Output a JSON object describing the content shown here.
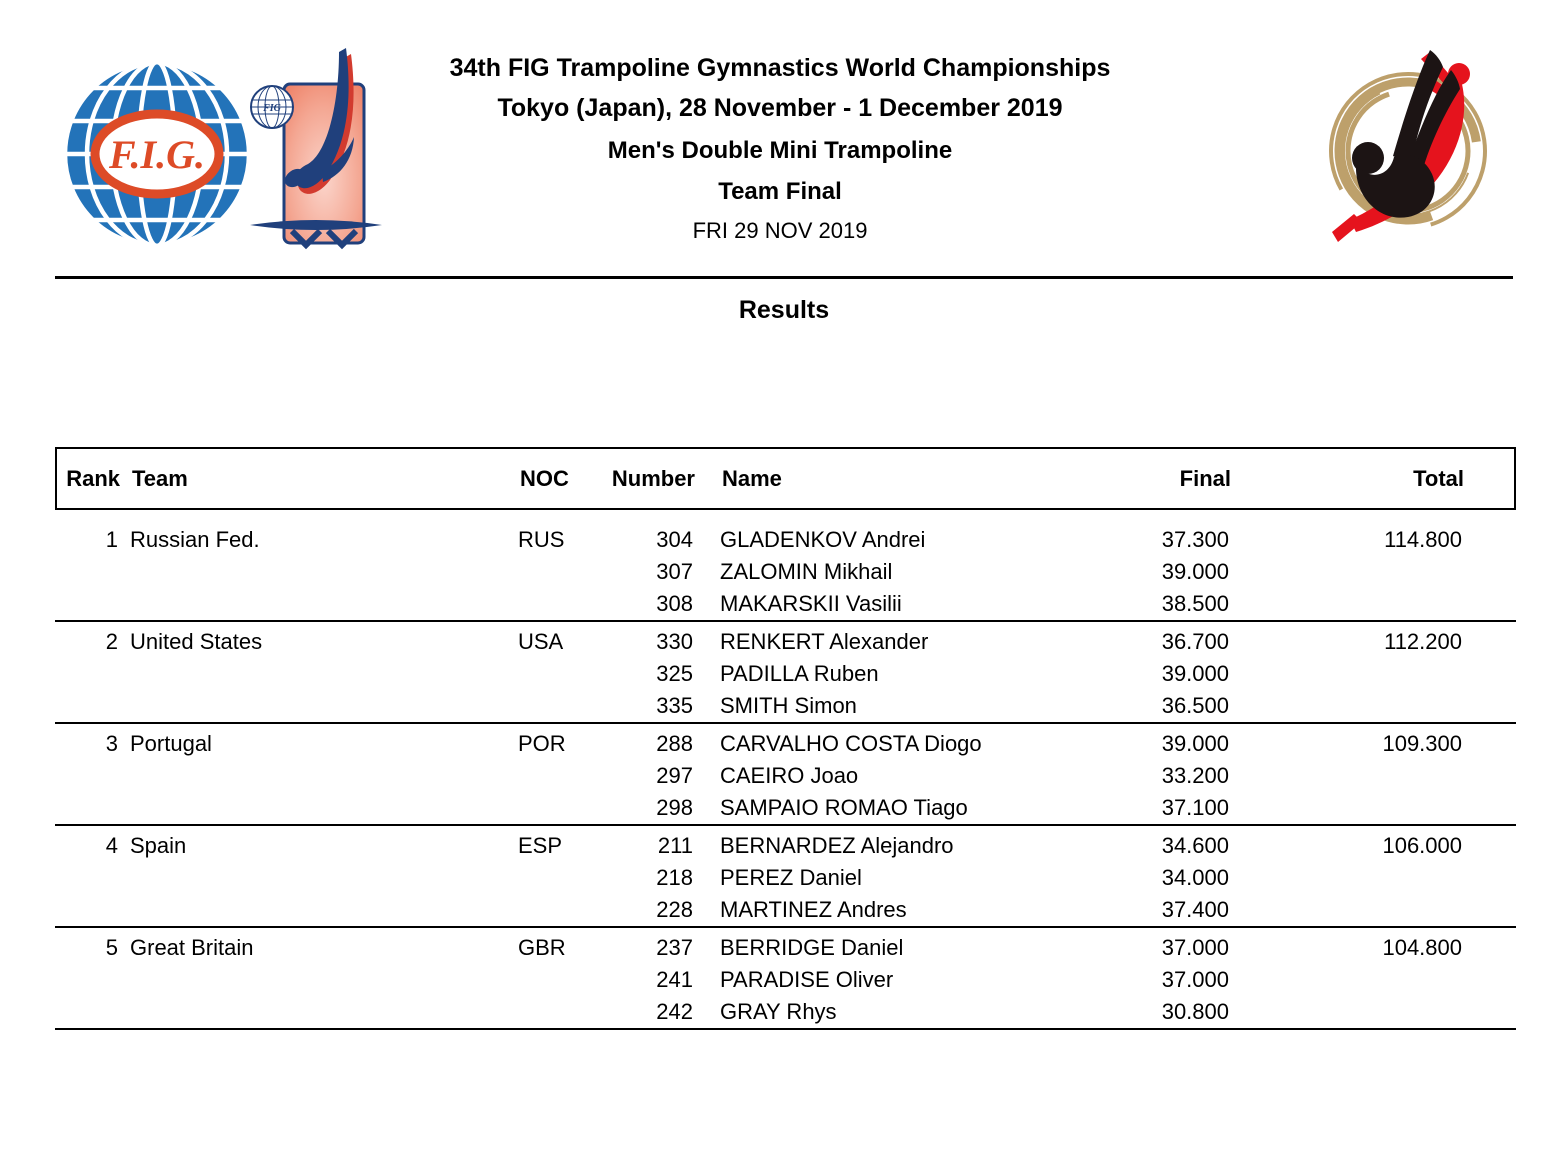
{
  "header": {
    "title_line1": "34th FIG Trampoline Gymnastics World Championships",
    "title_line2": "Tokyo (Japan), 28 November - 1 December 2019",
    "event": "Men's Double Mini Trampoline",
    "phase": "Team Final",
    "date": "FRI 29 NOV 2019"
  },
  "section_title": "Results",
  "logos": {
    "left_primary": "fig-globe-logo",
    "left_secondary": "trampoline-gymnast-logo",
    "right": "tokyo-2019-worlds-logo",
    "fig_text": "F.I.G.",
    "small_globe_text": "FIG",
    "colors": {
      "fig_blue": "#2373B9",
      "fig_orange": "#DD4B27",
      "navy": "#20407C",
      "salmon": "#EF8C78",
      "salmon_light": "#FBD5CB",
      "gold": "#BDA06B",
      "silhouette_black": "#1C1414",
      "silhouette_red": "#E5131D"
    }
  },
  "table": {
    "columns": {
      "rank": "Rank",
      "team": "Team",
      "noc": "NOC",
      "number": "Number",
      "name": "Name",
      "final": "Final",
      "total": "Total"
    },
    "teams": [
      {
        "rank": "1",
        "team": "Russian Fed.",
        "noc": "RUS",
        "total": "114.800",
        "athletes": [
          {
            "number": "304",
            "name": "GLADENKOV Andrei",
            "final": "37.300"
          },
          {
            "number": "307",
            "name": "ZALOMIN Mikhail",
            "final": "39.000"
          },
          {
            "number": "308",
            "name": "MAKARSKII Vasilii",
            "final": "38.500"
          }
        ]
      },
      {
        "rank": "2",
        "team": "United States",
        "noc": "USA",
        "total": "112.200",
        "athletes": [
          {
            "number": "330",
            "name": "RENKERT Alexander",
            "final": "36.700"
          },
          {
            "number": "325",
            "name": "PADILLA Ruben",
            "final": "39.000"
          },
          {
            "number": "335",
            "name": "SMITH Simon",
            "final": "36.500"
          }
        ]
      },
      {
        "rank": "3",
        "team": "Portugal",
        "noc": "POR",
        "total": "109.300",
        "athletes": [
          {
            "number": "288",
            "name": "CARVALHO COSTA Diogo",
            "final": "39.000"
          },
          {
            "number": "297",
            "name": "CAEIRO Joao",
            "final": "33.200"
          },
          {
            "number": "298",
            "name": "SAMPAIO ROMAO Tiago",
            "final": "37.100"
          }
        ]
      },
      {
        "rank": "4",
        "team": "Spain",
        "noc": "ESP",
        "total": "106.000",
        "athletes": [
          {
            "number": "211",
            "name": "BERNARDEZ Alejandro",
            "final": "34.600"
          },
          {
            "number": "218",
            "name": "PEREZ Daniel",
            "final": "34.000"
          },
          {
            "number": "228",
            "name": "MARTINEZ Andres",
            "final": "37.400"
          }
        ]
      },
      {
        "rank": "5",
        "team": "Great Britain",
        "noc": "GBR",
        "total": "104.800",
        "athletes": [
          {
            "number": "237",
            "name": "BERRIDGE Daniel",
            "final": "37.000"
          },
          {
            "number": "241",
            "name": "PARADISE Oliver",
            "final": "37.000"
          },
          {
            "number": "242",
            "name": "GRAY Rhys",
            "final": "30.800"
          }
        ]
      }
    ]
  }
}
